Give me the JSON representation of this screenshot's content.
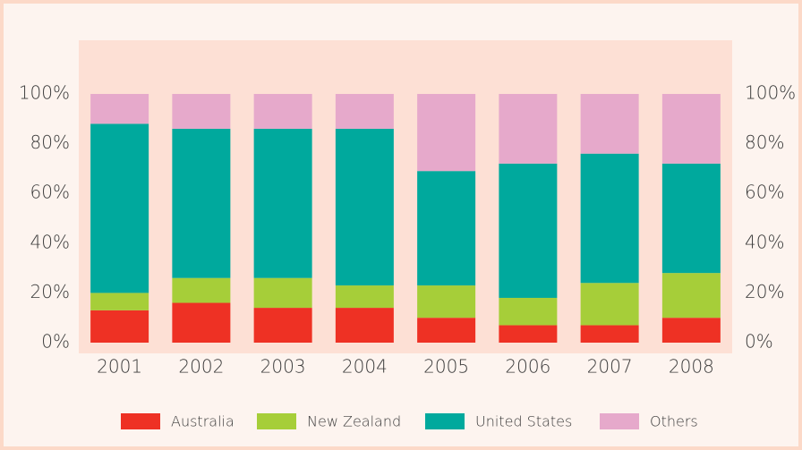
{
  "chart_data": {
    "type": "stacked_bar",
    "categories": [
      "2001",
      "2002",
      "2003",
      "2004",
      "2005",
      "2006",
      "2007",
      "2008"
    ],
    "series": [
      {
        "name": "Australia",
        "color": "#ee3124",
        "values": [
          13,
          16,
          14,
          14,
          10,
          7,
          7,
          10
        ]
      },
      {
        "name": "New Zealand",
        "color": "#a6ce39",
        "values": [
          7,
          10,
          12,
          9,
          13,
          11,
          17,
          18
        ]
      },
      {
        "name": "United States",
        "color": "#00a99d",
        "values": [
          68,
          60,
          60,
          63,
          46,
          54,
          52,
          44
        ]
      },
      {
        "name": "Others",
        "color": "#e6a9cb",
        "values": [
          12,
          14,
          14,
          14,
          31,
          28,
          24,
          28
        ]
      }
    ],
    "ylim": [
      0,
      100
    ],
    "yticks": [
      {
        "value": 0,
        "label": "0%"
      },
      {
        "value": 20,
        "label": "20%"
      },
      {
        "value": 40,
        "label": "40%"
      },
      {
        "value": 60,
        "label": "60%"
      },
      {
        "value": 80,
        "label": "80%"
      },
      {
        "value": 100,
        "label": "100%"
      }
    ],
    "y2lim": [
      0,
      100
    ],
    "y2ticks": [
      {
        "value": 0,
        "label": "0%"
      },
      {
        "value": 20,
        "label": "20%"
      },
      {
        "value": 40,
        "label": "40%"
      },
      {
        "value": 60,
        "label": "60%"
      },
      {
        "value": 80,
        "label": "80%"
      },
      {
        "value": 100,
        "label": "100%"
      }
    ],
    "legend": "bottom"
  }
}
